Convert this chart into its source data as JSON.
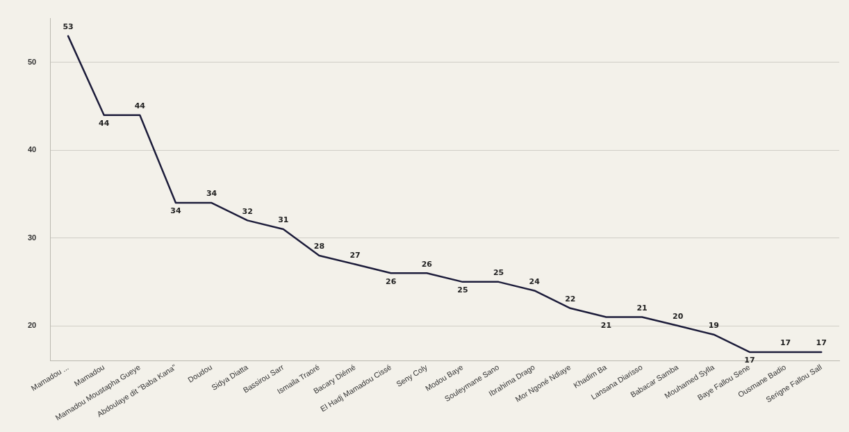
{
  "chart_data": {
    "type": "line",
    "categories": [
      "Mamadou ...",
      "Mamadou",
      "Mamadou Moustapha Gueye",
      "Abdoulaye dit \"Baba Kana\"",
      "Doudou",
      "Sidya Diatta",
      "Bassirou Sarr",
      "Ismaila Traoré",
      "Bacary Diémé",
      "El Hadj Mamadou Cissé",
      "Seny Coly",
      "Modou Baye",
      "Souleymane Sano",
      "Ibrahima Drago",
      "Mor Ngoné Ndiaye",
      "Khadim Ba",
      "Lansana Diarisso",
      "Babacar Samba",
      "Mouhamed Sylla",
      "Baye Fallou Sene",
      "Ousmane Badio",
      "Serigne Fallou Sall"
    ],
    "values": [
      53,
      44,
      44,
      34,
      34,
      32,
      31,
      28,
      27,
      26,
      26,
      25,
      25,
      24,
      22,
      21,
      21,
      20,
      19,
      17,
      17,
      17
    ],
    "color": "#1c1c3a",
    "ylim": [
      16,
      55
    ],
    "yticks": [
      20,
      30,
      40,
      50
    ],
    "grid": "y",
    "data_labels": true,
    "marker": "none",
    "line_style": "solid",
    "legend": false
  }
}
